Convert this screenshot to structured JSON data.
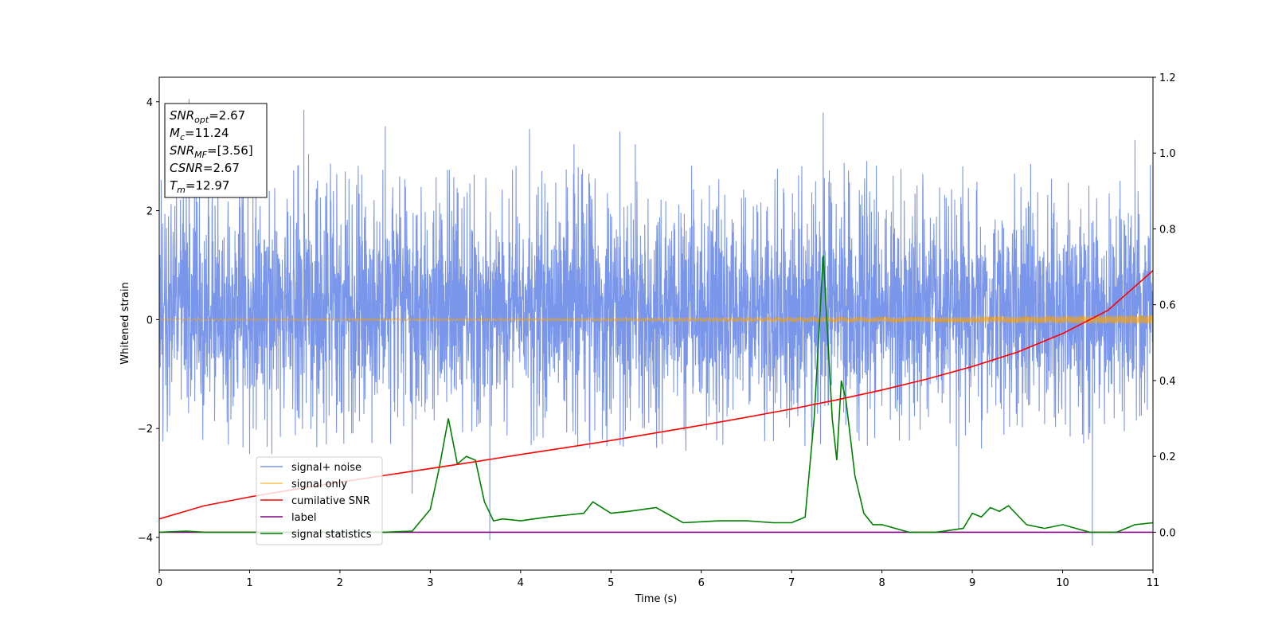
{
  "chart_data": {
    "type": "line",
    "xlabel": "Time (s)",
    "ylabel": "Whitened strain",
    "xlim": [
      0,
      11
    ],
    "ylim": [
      -4.6,
      4.45
    ],
    "y2lim": [
      -0.1,
      1.2
    ],
    "x_ticks": [
      0,
      1,
      2,
      3,
      4,
      5,
      6,
      7,
      8,
      9,
      10,
      11
    ],
    "y_ticks": [
      -4,
      -2,
      0,
      2,
      4
    ],
    "y2_ticks": [
      0.0,
      0.2,
      0.4,
      0.6,
      0.8,
      1.0,
      1.2
    ],
    "legend_placement": "lower-left",
    "grid": false,
    "annotation": {
      "lines": [
        {
          "name": "SNR",
          "sub": "opt",
          "value": "=2.67"
        },
        {
          "name": "M",
          "sub": "c",
          "value": "=11.24"
        },
        {
          "name": "SNR",
          "sub": "MF",
          "value": "=[3.56]"
        },
        {
          "name": "CSNR",
          "sub": "",
          "value": "=2.67"
        },
        {
          "name": "T",
          "sub": "m",
          "value": "=12.97"
        }
      ]
    },
    "series": [
      {
        "name": "signal+ noise",
        "color": "#4169e1",
        "axis": "left",
        "kind": "noise",
        "band_typical": [
          -1.9,
          2.3
        ],
        "extreme_points": [
          [
            0.33,
            4.05
          ],
          [
            1.6,
            3.85
          ],
          [
            2.5,
            3.55
          ],
          [
            2.8,
            -3.2
          ],
          [
            3.66,
            -4.05
          ],
          [
            4.1,
            3.5
          ],
          [
            5.1,
            3.45
          ],
          [
            7.35,
            3.8
          ],
          [
            8.85,
            -3.85
          ],
          [
            10.33,
            -4.15
          ],
          [
            10.8,
            3.3
          ]
        ]
      },
      {
        "name": "signal only",
        "color": "#ffa500",
        "axis": "left",
        "kind": "chirp",
        "amplitude_start": 0.02,
        "amplitude_end": 0.08
      },
      {
        "name": "cumilative SNR",
        "color": "#ff0000",
        "axis": "right",
        "x": [
          0,
          0.5,
          1,
          1.5,
          2,
          2.5,
          3,
          3.5,
          4,
          4.5,
          5,
          5.5,
          6,
          6.5,
          7,
          7.5,
          8,
          8.5,
          9,
          9.5,
          10,
          10.5,
          11
        ],
        "y": [
          0.035,
          0.07,
          0.093,
          0.113,
          0.132,
          0.15,
          0.168,
          0.186,
          0.205,
          0.223,
          0.242,
          0.262,
          0.282,
          0.303,
          0.325,
          0.349,
          0.375,
          0.404,
          0.437,
          0.475,
          0.524,
          0.585,
          0.69
        ]
      },
      {
        "name": "label",
        "color": "#800080",
        "axis": "right",
        "x": [
          0,
          11
        ],
        "y": [
          0.0,
          0.0
        ]
      },
      {
        "name": "signal statistics",
        "color": "#008000",
        "axis": "right",
        "x": [
          0,
          0.3,
          0.5,
          1.0,
          1.5,
          2.0,
          2.5,
          2.8,
          3.0,
          3.1,
          3.2,
          3.3,
          3.4,
          3.5,
          3.6,
          3.7,
          3.8,
          4.0,
          4.3,
          4.5,
          4.7,
          4.8,
          5.0,
          5.2,
          5.5,
          5.8,
          6.2,
          6.5,
          6.8,
          7.0,
          7.15,
          7.25,
          7.35,
          7.45,
          7.5,
          7.55,
          7.6,
          7.7,
          7.8,
          7.9,
          8.0,
          8.3,
          8.6,
          8.9,
          9.0,
          9.1,
          9.2,
          9.3,
          9.4,
          9.5,
          9.6,
          9.8,
          10.0,
          10.3,
          10.6,
          10.8,
          11.0
        ],
        "y": [
          0.0,
          0.003,
          0.0,
          0.0,
          0.0,
          0.0,
          0.0,
          0.003,
          0.06,
          0.17,
          0.3,
          0.18,
          0.2,
          0.19,
          0.08,
          0.03,
          0.035,
          0.03,
          0.04,
          0.045,
          0.05,
          0.08,
          0.05,
          0.055,
          0.065,
          0.025,
          0.03,
          0.03,
          0.025,
          0.025,
          0.04,
          0.3,
          0.73,
          0.3,
          0.19,
          0.4,
          0.35,
          0.15,
          0.05,
          0.02,
          0.02,
          0.0,
          0.0,
          0.01,
          0.05,
          0.04,
          0.065,
          0.055,
          0.07,
          0.045,
          0.02,
          0.01,
          0.02,
          0.0,
          0.0,
          0.02,
          0.025
        ]
      }
    ]
  }
}
